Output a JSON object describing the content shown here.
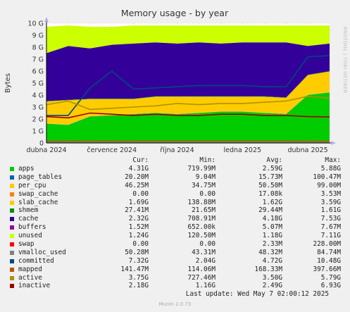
{
  "chart_data": {
    "type": "area",
    "title": "Memory usage - by year",
    "ylabel": "Bytes",
    "y_unit": "G",
    "ylim": [
      0,
      10
    ],
    "y_ticks": [
      "0",
      "1 G",
      "2 G",
      "3 G",
      "4 G",
      "5 G",
      "6 G",
      "7 G",
      "8 G",
      "9 G",
      "10 G"
    ],
    "x_ticks": [
      "dubna 2024",
      "července 2024",
      "října 2024",
      "ledna 2025",
      "dubna 2025"
    ],
    "x_months": [
      "2024-04",
      "2024-05",
      "2024-06",
      "2024-07",
      "2024-08",
      "2024-09",
      "2024-10",
      "2024-11",
      "2024-12",
      "2025-01",
      "2025-02",
      "2025-03",
      "2025-04",
      "2025-05"
    ],
    "stack_order": [
      "apps",
      "page_tables",
      "per_cpu",
      "swap_cache",
      "slab_cache",
      "shmem",
      "cache",
      "buffers",
      "unused"
    ],
    "stacked_values_monthly": {
      "apps": [
        1.6,
        1.5,
        2.2,
        2.3,
        2.4,
        2.5,
        2.4,
        2.5,
        2.6,
        2.6,
        2.5,
        2.4,
        4.0,
        4.2
      ],
      "page_tables": [
        0.02,
        0.02,
        0.02,
        0.02,
        0.02,
        0.02,
        0.02,
        0.02,
        0.02,
        0.02,
        0.02,
        0.02,
        0.02,
        0.02
      ],
      "per_cpu": [
        0.05,
        0.05,
        0.05,
        0.05,
        0.05,
        0.05,
        0.05,
        0.05,
        0.05,
        0.05,
        0.05,
        0.05,
        0.05,
        0.05
      ],
      "swap_cache": [
        0,
        0,
        0,
        0,
        0,
        0,
        0,
        0,
        0,
        0,
        0,
        0,
        0,
        0
      ],
      "slab_cache": [
        1.8,
        2.0,
        1.4,
        1.3,
        1.2,
        1.3,
        1.4,
        1.3,
        1.2,
        1.2,
        1.3,
        1.3,
        1.6,
        1.7
      ],
      "shmem": [
        0.03,
        0.03,
        0.03,
        0.03,
        0.03,
        0.03,
        0.03,
        0.03,
        0.03,
        0.03,
        0.03,
        0.03,
        0.03,
        0.03
      ],
      "cache": [
        4.0,
        4.5,
        4.2,
        4.5,
        4.6,
        4.5,
        4.4,
        4.5,
        4.4,
        4.5,
        4.5,
        4.6,
        2.4,
        2.3
      ],
      "buffers": [
        0.005,
        0.005,
        0.005,
        0.005,
        0.005,
        0.005,
        0.005,
        0.005,
        0.005,
        0.005,
        0.005,
        0.005,
        0.005,
        0.005
      ],
      "unused": [
        2.2,
        1.7,
        1.8,
        1.5,
        1.5,
        1.4,
        1.5,
        1.4,
        1.5,
        1.4,
        1.4,
        1.4,
        1.7,
        1.5
      ]
    },
    "line_values_monthly": {
      "committed": [
        2.3,
        2.3,
        4.6,
        6.0,
        4.5,
        4.6,
        4.7,
        4.8,
        4.8,
        4.8,
        4.7,
        4.7,
        7.2,
        7.3
      ],
      "mapped": [
        0.15,
        0.15,
        0.16,
        0.16,
        0.17,
        0.17,
        0.17,
        0.17,
        0.17,
        0.17,
        0.17,
        0.17,
        0.15,
        0.14
      ],
      "active": [
        3.2,
        3.5,
        2.8,
        2.9,
        3.0,
        3.1,
        3.3,
        3.2,
        3.3,
        3.3,
        3.4,
        3.5,
        3.9,
        3.75
      ],
      "inactive": [
        2.2,
        2.1,
        2.5,
        2.4,
        2.3,
        2.4,
        2.3,
        2.3,
        2.4,
        2.4,
        2.3,
        2.3,
        2.2,
        2.18
      ],
      "vmalloc_used": [
        0.05,
        0.05,
        0.05,
        0.05,
        0.05,
        0.05,
        0.05,
        0.05,
        0.05,
        0.05,
        0.05,
        0.05,
        0.05,
        0.05
      ]
    },
    "legend_header": [
      "Cur:",
      "Min:",
      "Avg:",
      "Max:"
    ],
    "series": [
      {
        "name": "apps",
        "color": "#00cc00",
        "cur": "4.31G",
        "min": "719.99M",
        "avg": "2.59G",
        "max": "5.88G"
      },
      {
        "name": "page_tables",
        "color": "#0066b3",
        "cur": "20.20M",
        "min": "9.04M",
        "avg": "15.73M",
        "max": "100.47M"
      },
      {
        "name": "per_cpu",
        "color": "#ffcc00",
        "cur": "46.25M",
        "min": "34.75M",
        "avg": "50.50M",
        "max": "99.00M"
      },
      {
        "name": "swap_cache",
        "color": "#ff8000",
        "cur": "0.00",
        "min": "0.00",
        "avg": "17.08k",
        "max": "3.53M"
      },
      {
        "name": "slab_cache",
        "color": "#ffcc00",
        "cur": "1.69G",
        "min": "138.88M",
        "avg": "1.62G",
        "max": "3.59G"
      },
      {
        "name": "shmem",
        "color": "#008f00",
        "cur": "27.41M",
        "min": "21.65M",
        "avg": "29.44M",
        "max": "1.61G"
      },
      {
        "name": "cache",
        "color": "#330099",
        "cur": "2.32G",
        "min": "708.91M",
        "avg": "4.18G",
        "max": "7.53G"
      },
      {
        "name": "buffers",
        "color": "#990099",
        "cur": "1.52M",
        "min": "652.00k",
        "avg": "5.07M",
        "max": "7.67M"
      },
      {
        "name": "unused",
        "color": "#ccff00",
        "cur": "1.24G",
        "min": "120.50M",
        "avg": "1.18G",
        "max": "7.11G"
      },
      {
        "name": "swap",
        "color": "#ff0000",
        "cur": "0.00",
        "min": "0.00",
        "avg": "2.33M",
        "max": "228.00M"
      },
      {
        "name": "vmalloc_used",
        "color": "#808080",
        "cur": "50.28M",
        "min": "43.31M",
        "avg": "48.32M",
        "max": "84.74M"
      },
      {
        "name": "committed",
        "color": "#00487d",
        "cur": "7.32G",
        "min": "2.04G",
        "avg": "4.72G",
        "max": "10.48G"
      },
      {
        "name": "mapped",
        "color": "#b35a00",
        "cur": "141.47M",
        "min": "114.06M",
        "avg": "168.33M",
        "max": "397.66M"
      },
      {
        "name": "active",
        "color": "#b38f00",
        "cur": "3.75G",
        "min": "727.46M",
        "avg": "3.50G",
        "max": "5.79G"
      },
      {
        "name": "inactive",
        "color": "#a00000",
        "cur": "2.18G",
        "min": "1.16G",
        "avg": "2.49G",
        "max": "6.93G"
      }
    ]
  },
  "footer": {
    "last_update": "Last update: Wed May  7 02:00:12 2025",
    "munin": "Munin 2.0.73",
    "rrdtool": "RRDTOOL / TOBI OETIKER"
  }
}
